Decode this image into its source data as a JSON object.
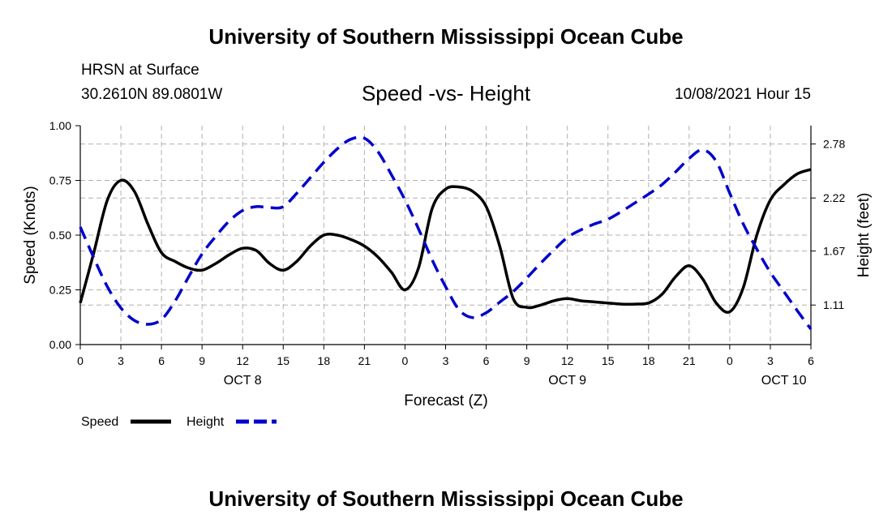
{
  "header": {
    "top_title": "University of Southern Mississippi Ocean Cube",
    "station": "HRSN at Surface",
    "coords": "30.2610N  89.0801W",
    "plot_title": "Speed -vs- Height",
    "datetime": "10/08/2021 Hour 15",
    "bottom_title": "University of Southern Mississippi Ocean Cube"
  },
  "colors": {
    "speed": "#000000",
    "height": "#0000cc",
    "grid": "#b0b0b0"
  },
  "chart_data": {
    "type": "line",
    "title": "Speed -vs- Height",
    "xlabel": "Forecast (Z)",
    "ylabel": "Speed (Knots)",
    "y2label": "Height (feet)",
    "grid": true,
    "x_range_hours": [
      0,
      54
    ],
    "x_ticks": [
      {
        "h": 0,
        "label": "0"
      },
      {
        "h": 3,
        "label": "3"
      },
      {
        "h": 6,
        "label": "6"
      },
      {
        "h": 9,
        "label": "9"
      },
      {
        "h": 12,
        "label": "12"
      },
      {
        "h": 15,
        "label": "15"
      },
      {
        "h": 18,
        "label": "18"
      },
      {
        "h": 21,
        "label": "21"
      },
      {
        "h": 24,
        "label": "0"
      },
      {
        "h": 27,
        "label": "3"
      },
      {
        "h": 30,
        "label": "6"
      },
      {
        "h": 33,
        "label": "9"
      },
      {
        "h": 36,
        "label": "12"
      },
      {
        "h": 39,
        "label": "15"
      },
      {
        "h": 42,
        "label": "18"
      },
      {
        "h": 45,
        "label": "21"
      },
      {
        "h": 48,
        "label": "0"
      },
      {
        "h": 51,
        "label": "3"
      },
      {
        "h": 54,
        "label": "6"
      }
    ],
    "date_labels": [
      {
        "h": 12,
        "label": "OCT 8"
      },
      {
        "h": 36,
        "label": "OCT 9"
      },
      {
        "h": 52,
        "label": "OCT 10"
      }
    ],
    "ylim": [
      0,
      1
    ],
    "y_ticks": [
      {
        "v": 0,
        "label": "0.00"
      },
      {
        "v": 0.25,
        "label": "0.25"
      },
      {
        "v": 0.5,
        "label": "0.50"
      },
      {
        "v": 0.75,
        "label": "0.75"
      },
      {
        "v": 1,
        "label": "1.00"
      }
    ],
    "y2lim": [
      0.7,
      2.97
    ],
    "y2_ticks": [
      {
        "v": 1.11,
        "label": "1.11"
      },
      {
        "v": 1.67,
        "label": "1.67"
      },
      {
        "v": 2.22,
        "label": "2.22"
      },
      {
        "v": 2.78,
        "label": "2.78"
      }
    ],
    "series": [
      {
        "name": "Speed",
        "axis": "left",
        "style": "solid",
        "x": [
          0,
          1,
          2,
          3,
          4,
          5,
          6,
          7,
          8,
          9,
          10,
          11,
          12,
          13,
          14,
          15,
          16,
          17,
          18,
          19,
          20,
          21,
          22,
          23,
          24,
          25,
          26,
          27,
          28,
          29,
          30,
          31,
          32,
          33,
          34,
          35,
          36,
          37,
          38,
          39,
          40,
          41,
          42,
          43,
          44,
          45,
          46,
          47,
          48,
          49,
          50,
          51,
          52,
          53,
          54
        ],
        "values": [
          0.19,
          0.42,
          0.66,
          0.75,
          0.7,
          0.55,
          0.42,
          0.38,
          0.35,
          0.34,
          0.37,
          0.41,
          0.44,
          0.43,
          0.37,
          0.34,
          0.38,
          0.45,
          0.5,
          0.5,
          0.48,
          0.45,
          0.4,
          0.33,
          0.25,
          0.35,
          0.62,
          0.71,
          0.72,
          0.7,
          0.63,
          0.45,
          0.21,
          0.17,
          0.18,
          0.2,
          0.21,
          0.2,
          0.195,
          0.19,
          0.185,
          0.185,
          0.19,
          0.23,
          0.31,
          0.36,
          0.3,
          0.19,
          0.15,
          0.26,
          0.5,
          0.66,
          0.73,
          0.78,
          0.8
        ]
      },
      {
        "name": "Height",
        "axis": "right",
        "style": "dashed",
        "x": [
          0,
          1,
          2,
          3,
          4,
          5,
          6,
          7,
          8,
          9,
          10,
          11,
          12,
          13,
          14,
          15,
          16,
          17,
          18,
          19,
          20,
          21,
          22,
          23,
          24,
          25,
          26,
          27,
          28,
          29,
          30,
          31,
          32,
          33,
          34,
          35,
          36,
          37,
          38,
          39,
          40,
          41,
          42,
          43,
          44,
          45,
          46,
          47,
          48,
          49,
          50,
          51,
          52,
          53,
          54
        ],
        "values": [
          1.92,
          1.6,
          1.3,
          1.08,
          0.95,
          0.91,
          0.96,
          1.15,
          1.4,
          1.64,
          1.82,
          1.98,
          2.09,
          2.13,
          2.12,
          2.13,
          2.27,
          2.43,
          2.59,
          2.73,
          2.83,
          2.84,
          2.7,
          2.46,
          2.2,
          1.9,
          1.58,
          1.3,
          1.06,
          0.98,
          1.03,
          1.14,
          1.25,
          1.39,
          1.54,
          1.68,
          1.81,
          1.89,
          1.95,
          2.0,
          2.08,
          2.17,
          2.26,
          2.36,
          2.49,
          2.63,
          2.72,
          2.6,
          2.27,
          1.95,
          1.69,
          1.45,
          1.25,
          1.05,
          0.86
        ]
      }
    ],
    "legend_position": "bottom-left"
  }
}
